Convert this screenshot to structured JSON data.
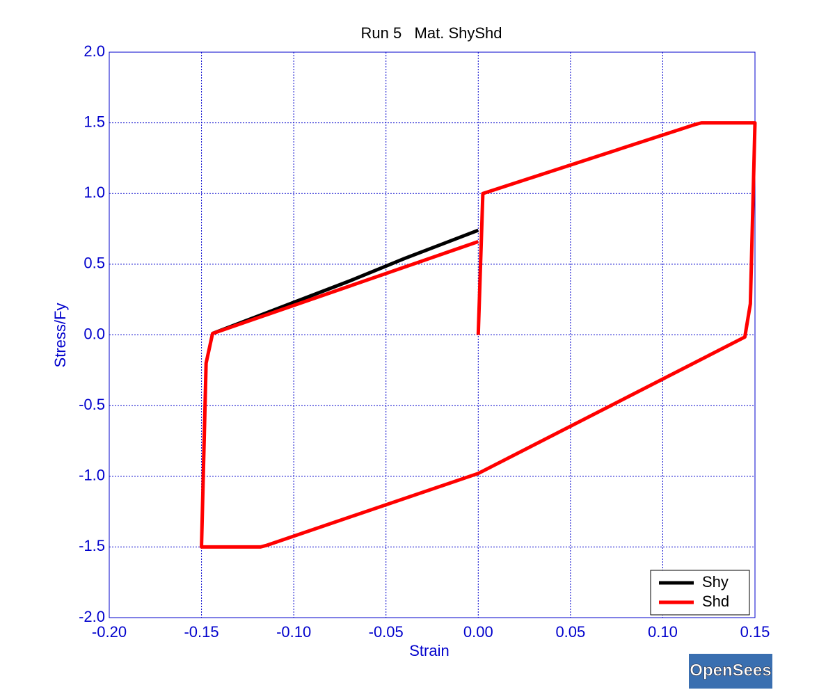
{
  "chart_data": {
    "type": "line",
    "title": "Run 5   Mat. ShyShd",
    "xlabel": "Strain",
    "ylabel": "Stress/Fy",
    "xlim": [
      -0.2,
      0.15
    ],
    "xticks": [
      {
        "value": -0.2,
        "label": "-0.20"
      },
      {
        "value": -0.15,
        "label": "-0.15"
      },
      {
        "value": -0.1,
        "label": "-0.10"
      },
      {
        "value": -0.05,
        "label": "-0.05"
      },
      {
        "value": 0,
        "label": "0.00"
      },
      {
        "value": 0.05,
        "label": "0.05"
      },
      {
        "value": 0.1,
        "label": "0.10"
      },
      {
        "value": 0.15,
        "label": "0.15"
      }
    ],
    "ylim": [
      -2,
      2
    ],
    "yticks": [
      {
        "value": -2,
        "label": "-2.0"
      },
      -1.5,
      {
        "value": -1,
        "label": "-1.0"
      },
      -0.5,
      {
        "value": 0,
        "label": "0.0"
      },
      0.5,
      {
        "value": 1,
        "label": "1.0"
      },
      1.5,
      {
        "value": 2,
        "label": "2.0"
      }
    ],
    "grid": true,
    "legend": "lower right",
    "series": [
      {
        "name": "Shy",
        "color": "#000000",
        "x": [
          -0.144,
          -0.13,
          -0.1,
          -0.07,
          -0.04,
          0
        ],
        "values": [
          0.01,
          0.08,
          0.23,
          0.38,
          0.54,
          0.74
        ]
      },
      {
        "name": "Shd",
        "color": "#ff0000",
        "x": [
          0,
          0.0025,
          0.118,
          0.121,
          0.15,
          0.1475,
          0.1445,
          0,
          -0.115,
          -0.118,
          -0.15,
          -0.1475,
          -0.144,
          0
        ],
        "values": [
          0,
          1.0,
          1.49,
          1.5,
          1.5,
          0.22,
          -0.015,
          -0.98,
          -1.49,
          -1.5,
          -1.5,
          -0.2,
          0.01,
          0.66
        ]
      }
    ],
    "logo": "OpenSees"
  }
}
